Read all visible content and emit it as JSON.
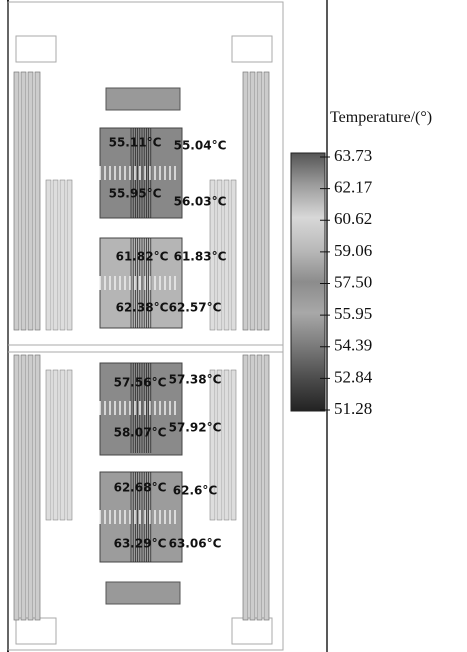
{
  "legend": {
    "title": "Temperature/(°)",
    "ticks": [
      "63.73",
      "62.17",
      "60.62",
      "59.06",
      "57.50",
      "55.95",
      "54.39",
      "52.84",
      "51.28"
    ]
  },
  "labels": [
    "55.11°C",
    "55.04°C",
    "55.95°C",
    "56.03°C",
    "61.82°C",
    "61.83°C",
    "62.38°C",
    "62.57°C",
    "57.56°C",
    "57.38°C",
    "58.07°C",
    "57.92°C",
    "62.68°C",
    "62.6°C",
    "63.29°C",
    "63.06°C"
  ]
}
